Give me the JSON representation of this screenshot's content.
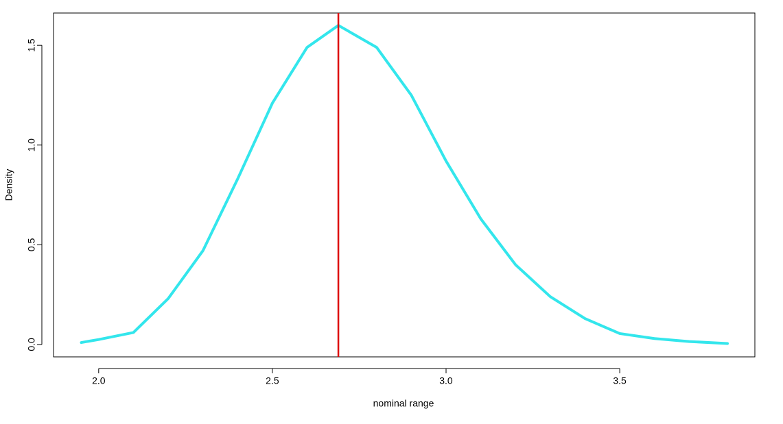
{
  "chart_data": {
    "type": "line",
    "x_label": "nominal range",
    "y_label": "Density",
    "x": [
      1.95,
      2.0,
      2.1,
      2.2,
      2.3,
      2.4,
      2.5,
      2.6,
      2.69,
      2.8,
      2.9,
      3.0,
      3.1,
      3.2,
      3.3,
      3.4,
      3.5,
      3.6,
      3.7,
      3.81
    ],
    "series": [
      {
        "color": "#33e6ec",
        "values": [
          0.01,
          0.025,
          0.06,
          0.23,
          0.47,
          0.83,
          1.21,
          1.49,
          1.6,
          1.49,
          1.25,
          0.92,
          0.63,
          0.4,
          0.24,
          0.13,
          0.055,
          0.03,
          0.015,
          0.005
        ]
      }
    ],
    "vline": 2.69,
    "vline_color": "#dd0000",
    "xlim": [
      1.87,
      3.889
    ],
    "ylim": [
      -0.062,
      1.662
    ],
    "xticks": [
      {
        "value": 2,
        "label": "2.0"
      },
      2.5,
      {
        "value": 3,
        "label": "3.0"
      },
      3.5
    ],
    "yticks": [
      {
        "value": 0,
        "label": "0.0"
      },
      0.5,
      {
        "value": 1,
        "label": "1.0"
      },
      1.5
    ]
  }
}
